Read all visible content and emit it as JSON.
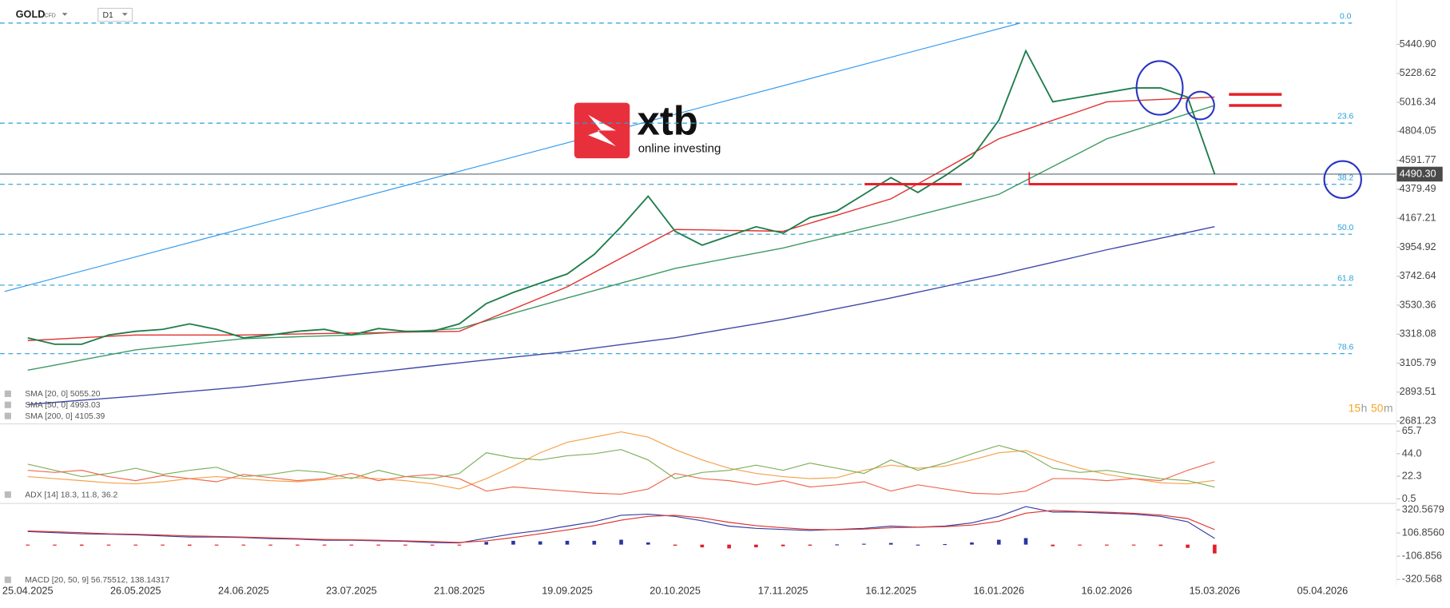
{
  "chart_data": {
    "type": "line",
    "title": "GOLD",
    "instrument_type": "CFD",
    "timeframe": "D1",
    "categories": [
      "25.04.2025",
      null,
      null,
      null,
      "26.05.2025",
      null,
      null,
      null,
      "24.06.2025",
      null,
      null,
      null,
      "23.07.2025",
      null,
      null,
      null,
      "21.08.2025",
      null,
      null,
      null,
      "19.09.2025",
      null,
      null,
      null,
      "20.10.2025",
      null,
      null,
      null,
      "17.11.2025",
      null,
      null,
      null,
      "16.12.2025",
      null,
      null,
      null,
      "16.01.2026",
      null,
      null,
      null,
      "16.02.2026",
      null,
      null,
      null,
      "15.03.2026",
      null,
      null,
      null,
      "05.04.2026"
    ],
    "price": {
      "color": "#1e7d4a",
      "values": [
        3291,
        3244,
        3244,
        3312,
        3339,
        3353,
        3393,
        3353,
        3291,
        3312,
        3339,
        3353,
        3312,
        3359,
        3339,
        3339,
        3393,
        3542,
        3624,
        3692,
        3759,
        3902,
        4105,
        4329,
        4071,
        3970,
        4037,
        4105,
        4058,
        4173,
        4220,
        4342,
        4465,
        4356,
        4478,
        4614,
        4885,
        5394,
        5020,
        5054,
        5088,
        5122,
        5122,
        5054,
        4490.3,
        null,
        null,
        null,
        null
      ]
    },
    "series": [
      {
        "name": "SMA [200, 0] 4105.39",
        "color": "#3f4aa8",
        "values": [
          2803,
          2818,
          2834,
          2849,
          2864,
          2881,
          2898,
          2915,
          2932,
          2954,
          2976,
          2998,
          3020,
          3042,
          3064,
          3086,
          3108,
          3129,
          3149,
          3170,
          3190,
          3216,
          3241,
          3267,
          3292,
          3326,
          3360,
          3393,
          3427,
          3466,
          3505,
          3544,
          3583,
          3626,
          3668,
          3711,
          3753,
          3799,
          3845,
          3890,
          3936,
          3978,
          4021,
          4063,
          4105.39,
          null,
          null,
          null,
          null
        ]
      },
      {
        "name": "SMA [50, 0] 4993.03",
        "color": "#3c9a64",
        "values": [
          3054,
          3091,
          3129,
          3166,
          3203,
          3224,
          3244,
          3265,
          3285,
          3292,
          3299,
          3305,
          3312,
          3324,
          3336,
          3347,
          3359,
          3415,
          3471,
          3527,
          3583,
          3637,
          3692,
          3746,
          3800,
          3837,
          3875,
          3912,
          3949,
          3997,
          4044,
          4092,
          4139,
          4190,
          4240,
          4291,
          4342,
          4444,
          4546,
          4647,
          4749,
          4810,
          4871,
          4932,
          4993.03,
          null,
          null,
          null,
          null
        ]
      },
      {
        "name": "SMA [20, 0] 5055.20",
        "color": "#e0322f",
        "values": [
          3271,
          3281,
          3292,
          3302,
          3312,
          3312,
          3312,
          3312,
          3312,
          3316,
          3319,
          3323,
          3326,
          3329,
          3333,
          3336,
          3339,
          3421,
          3502,
          3584,
          3665,
          3770,
          3875,
          3980,
          4085,
          4082,
          4078,
          4075,
          4071,
          4131,
          4190,
          4250,
          4309,
          4419,
          4529,
          4639,
          4749,
          4817,
          4885,
          4952,
          5020,
          5029,
          5038,
          5046,
          5055.2,
          null,
          null,
          null,
          null
        ]
      }
    ],
    "ylim": [
      2661,
      5766
    ],
    "yticks": [
      {
        "value": 5440.9,
        "label": "5440.90"
      },
      5228.62,
      5016.34,
      4804.05,
      4591.77,
      4379.49,
      4167.21,
      3954.92,
      3742.64,
      3530.36,
      3318.08,
      3105.79,
      2893.51,
      2681.23
    ],
    "last_price": {
      "value": 4490.3,
      "label": "4490.30"
    },
    "fib_levels": [
      {
        "label": "0.0",
        "value": 5597
      },
      {
        "label": "23.6",
        "value": 4864
      },
      {
        "label": "38.2",
        "value": 4416
      },
      {
        "label": "50.0",
        "value": 4050
      },
      {
        "label": "61.8",
        "value": 3677
      },
      {
        "label": "78.6",
        "value": 3175
      }
    ],
    "countdown": [
      "15",
      "h",
      "50",
      "m"
    ],
    "adx": {
      "legend": "ADX [14]  18.3, 11.8, 36.2",
      "ylim": [
        -3,
        71
      ],
      "yticks": [
        65.7,
        {
          "value": 44,
          "label": "44.0"
        },
        22.3,
        0.5
      ],
      "series": [
        {
          "color": "#f5a04a",
          "values": [
            22,
            20,
            18,
            16,
            15,
            17,
            20,
            22,
            20,
            18,
            17,
            19,
            21,
            20,
            18,
            15,
            10,
            20,
            32,
            45,
            55,
            60,
            65,
            60,
            48,
            38,
            30,
            25,
            22,
            20,
            21,
            28,
            33,
            30,
            32,
            38,
            45,
            47,
            38,
            30,
            24,
            20,
            16,
            15,
            18.3,
            null,
            null,
            null,
            null
          ]
        },
        {
          "color": "#7fb05a",
          "values": [
            34,
            28,
            22,
            25,
            30,
            24,
            28,
            31,
            22,
            24,
            28,
            26,
            20,
            28,
            22,
            20,
            25,
            45,
            40,
            38,
            42,
            44,
            48,
            38,
            20,
            26,
            28,
            33,
            28,
            35,
            30,
            25,
            38,
            28,
            35,
            44,
            52,
            45,
            30,
            26,
            28,
            24,
            20,
            18,
            11.8,
            null,
            null,
            null,
            null
          ]
        },
        {
          "color": "#ee6a50",
          "values": [
            28,
            26,
            28,
            22,
            18,
            23,
            20,
            17,
            24,
            21,
            18,
            20,
            25,
            18,
            22,
            24,
            20,
            8,
            12,
            10,
            8,
            6,
            5,
            10,
            25,
            20,
            18,
            14,
            18,
            12,
            14,
            17,
            8,
            14,
            10,
            6,
            5,
            8,
            20,
            20,
            18,
            20,
            18,
            28,
            36.2,
            null,
            null,
            null,
            null
          ]
        }
      ]
    },
    "macd": {
      "legend": "MACD [20, 50, 9]  56.75512,  138.14317",
      "ylim": [
        -362,
        362
      ],
      "yticks": [
        320.5679,
        {
          "value": 106.856,
          "label": "106.8560"
        },
        -106.856,
        -320.568
      ],
      "series": [
        {
          "color": "#3340a0",
          "values": [
            120,
            110,
            100,
            95,
            90,
            80,
            70,
            70,
            65,
            55,
            50,
            40,
            40,
            35,
            30,
            20,
            15,
            60,
            100,
            130,
            170,
            210,
            270,
            280,
            260,
            220,
            170,
            150,
            140,
            130,
            140,
            150,
            170,
            160,
            170,
            200,
            260,
            350,
            300,
            300,
            290,
            280,
            260,
            210,
            56.75512,
            null,
            null,
            null,
            null
          ]
        },
        {
          "color": "#e0322f",
          "values": [
            125,
            118,
            110,
            100,
            95,
            88,
            80,
            75,
            70,
            62,
            55,
            48,
            44,
            40,
            35,
            28,
            20,
            35,
            65,
            100,
            135,
            175,
            225,
            260,
            270,
            245,
            205,
            175,
            155,
            140,
            138,
            142,
            155,
            160,
            165,
            180,
            215,
            290,
            315,
            305,
            298,
            288,
            272,
            240,
            138.14317,
            null,
            null,
            null,
            null
          ]
        }
      ],
      "histogram": [
        -5,
        -8,
        -10,
        -5,
        -5,
        -8,
        -10,
        -5,
        -5,
        -7,
        -5,
        -8,
        -4,
        -5,
        -5,
        -8,
        -5,
        25,
        35,
        30,
        35,
        35,
        45,
        20,
        -10,
        -25,
        -35,
        -25,
        -15,
        -10,
        2,
        8,
        15,
        0,
        5,
        20,
        45,
        60,
        -15,
        -5,
        -8,
        -8,
        -12,
        -30,
        -81.38,
        null,
        null,
        null,
        null
      ]
    }
  },
  "branding": {
    "name": "xtb",
    "tagline": "online investing"
  }
}
